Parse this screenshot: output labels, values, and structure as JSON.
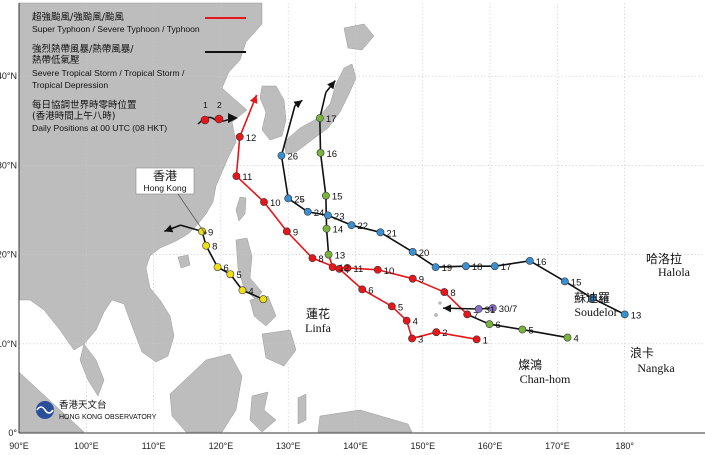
{
  "colors": {
    "land": "#bdbdbd",
    "sea": "#ffffff",
    "grid": "#c8c8c8",
    "track_typhoon": "#e8161b",
    "track_weak": "#111111",
    "dot_super": "#e8161b",
    "dot_sevts": "#78b43c",
    "dot_ts": "#f0e012",
    "dot_td": "#3a8fd0",
    "dot_other": "#8a6fc9"
  },
  "axes": {
    "x_ticks": [
      "90°E",
      "100°E",
      "110°E",
      "120°E",
      "130°E",
      "140°E",
      "150°E",
      "160°E",
      "170°E",
      "180°"
    ],
    "y_ticks": [
      "0°",
      "10°N",
      "20°N",
      "30°N",
      "40°N"
    ]
  },
  "legend": {
    "typhoon_cn": "超強颱風/強颱風/颱風",
    "typhoon_en": "Super Typhoon / Severe Typhoon / Typhoon",
    "weak_cn_1": "強烈熱帶風暴/熱帶風暴/",
    "weak_cn_2": "熱帶低氣壓",
    "weak_en_1": "Severe Tropical Storm / Tropical Storm /",
    "weak_en_2": "Tropical Depression",
    "daily_cn_1": "每日協調世界時零時位置",
    "daily_cn_2": "(香港時間上午八時)",
    "daily_en": "Daily Positions at 00 UTC (08 HKT)",
    "sample_1": "1",
    "sample_2": "2"
  },
  "hong_kong": {
    "cn": "香港",
    "en": "Hong Kong"
  },
  "observatory": {
    "cn": "香港天文台",
    "en": "HONG KONG OBSERVATORY"
  },
  "storms": [
    {
      "id": "linfa",
      "name_cn": "蓮花",
      "name_en": "Linfa",
      "points": [
        {
          "lon": 126.3,
          "lat": 15.0,
          "day": "",
          "cat": "ts"
        },
        {
          "lon": 123.2,
          "lat": 16.0,
          "day": "4",
          "cat": "ts"
        },
        {
          "lon": 121.4,
          "lat": 17.8,
          "day": "5",
          "cat": "ts"
        },
        {
          "lon": 119.5,
          "lat": 18.6,
          "day": "6",
          "cat": "ts"
        },
        {
          "lon": 117.8,
          "lat": 21.0,
          "day": "8",
          "cat": "ts"
        },
        {
          "lon": 117.2,
          "lat": 22.6,
          "day": "9",
          "cat": "ts"
        },
        {
          "lon": 114.0,
          "lat": 23.3,
          "day": "",
          "cat": ""
        },
        {
          "lon": 111.6,
          "lat": 22.6,
          "day": "",
          "cat": ""
        }
      ]
    },
    {
      "id": "chanhom",
      "name_cn": "燦鴻",
      "name_en": "Chan-hom",
      "points": [
        {
          "lon": 158.0,
          "lat": 10.5,
          "day": "1",
          "cat": "super"
        },
        {
          "lon": 152.0,
          "lat": 11.3,
          "day": "2",
          "cat": "super"
        },
        {
          "lon": 148.4,
          "lat": 10.6,
          "day": "3",
          "cat": "super"
        },
        {
          "lon": 147.6,
          "lat": 12.6,
          "day": "4",
          "cat": "super"
        },
        {
          "lon": 145.4,
          "lat": 14.2,
          "day": "5",
          "cat": "super"
        },
        {
          "lon": 141.0,
          "lat": 16.1,
          "day": "6",
          "cat": "super"
        },
        {
          "lon": 137.6,
          "lat": 18.4,
          "day": "7",
          "cat": "super"
        },
        {
          "lon": 133.6,
          "lat": 19.6,
          "day": "8",
          "cat": "super"
        },
        {
          "lon": 129.8,
          "lat": 22.6,
          "day": "9",
          "cat": "super"
        },
        {
          "lon": 126.4,
          "lat": 25.9,
          "day": "10",
          "cat": "super"
        },
        {
          "lon": 122.3,
          "lat": 28.8,
          "day": "11",
          "cat": "super"
        },
        {
          "lon": 122.8,
          "lat": 33.2,
          "day": "12",
          "cat": "super"
        },
        {
          "lon": 125.3,
          "lat": 37.9,
          "day": "",
          "cat": ""
        }
      ]
    },
    {
      "id": "nangka",
      "name_cn": "浪卡",
      "name_en": "Nangka",
      "points": [
        {
          "lon": 171.5,
          "lat": 10.7,
          "day": "4",
          "cat": "sevts"
        },
        {
          "lon": 164.8,
          "lat": 11.6,
          "day": "5",
          "cat": "sevts"
        },
        {
          "lon": 159.9,
          "lat": 12.2,
          "day": "6",
          "cat": "sevts"
        },
        {
          "lon": 156.6,
          "lat": 13.3,
          "day": "7",
          "cat": "super"
        },
        {
          "lon": 153.2,
          "lat": 15.8,
          "day": "8",
          "cat": "super"
        },
        {
          "lon": 148.5,
          "lat": 17.3,
          "day": "9",
          "cat": "super"
        },
        {
          "lon": 143.3,
          "lat": 18.3,
          "day": "10",
          "cat": "super"
        },
        {
          "lon": 138.8,
          "lat": 18.5,
          "day": "11",
          "cat": "super"
        },
        {
          "lon": 136.6,
          "lat": 18.6,
          "day": "12",
          "cat": "super"
        },
        {
          "lon": 136.0,
          "lat": 20.0,
          "day": "13",
          "cat": "sevts"
        },
        {
          "lon": 135.7,
          "lat": 22.9,
          "day": "14",
          "cat": "sevts"
        },
        {
          "lon": 135.6,
          "lat": 26.6,
          "day": "15",
          "cat": "sevts"
        },
        {
          "lon": 134.8,
          "lat": 31.4,
          "day": "16",
          "cat": "sevts"
        },
        {
          "lon": 134.7,
          "lat": 35.3,
          "day": "17",
          "cat": "sevts"
        },
        {
          "lon": 135.6,
          "lat": 38.2,
          "day": "",
          "cat": ""
        },
        {
          "lon": 137.0,
          "lat": 39.5,
          "day": "",
          "cat": ""
        }
      ]
    },
    {
      "id": "halola",
      "name_cn": "哈洛拉",
      "name_en": "Halola",
      "points": [
        {
          "lon": 180.0,
          "lat": 13.3,
          "day": "13",
          "cat": "td"
        },
        {
          "lon": 175.2,
          "lat": 15.1,
          "day": "14",
          "cat": "td"
        },
        {
          "lon": 171.1,
          "lat": 17.0,
          "day": "15",
          "cat": "td"
        },
        {
          "lon": 165.9,
          "lat": 19.3,
          "day": "16",
          "cat": "td"
        },
        {
          "lon": 160.7,
          "lat": 18.7,
          "day": "17",
          "cat": "td"
        },
        {
          "lon": 156.4,
          "lat": 18.7,
          "day": "18",
          "cat": "td"
        },
        {
          "lon": 151.9,
          "lat": 18.6,
          "day": "19",
          "cat": "td"
        },
        {
          "lon": 148.5,
          "lat": 20.3,
          "day": "20",
          "cat": "td"
        },
        {
          "lon": 143.7,
          "lat": 22.5,
          "day": "21",
          "cat": "td"
        },
        {
          "lon": 139.4,
          "lat": 23.3,
          "day": "22",
          "cat": "td"
        },
        {
          "lon": 135.9,
          "lat": 24.4,
          "day": "23",
          "cat": "td"
        },
        {
          "lon": 132.9,
          "lat": 24.8,
          "day": "24",
          "cat": "td"
        },
        {
          "lon": 130.0,
          "lat": 26.3,
          "day": "25",
          "cat": "td"
        },
        {
          "lon": 129.0,
          "lat": 31.1,
          "day": "26",
          "cat": "td"
        },
        {
          "lon": 131.0,
          "lat": 36.7,
          "day": "",
          "cat": ""
        },
        {
          "lon": 132.1,
          "lat": 37.3,
          "day": "",
          "cat": ""
        }
      ]
    },
    {
      "id": "soudelor",
      "name_cn": "蘇迪羅",
      "name_en": "Soudelor",
      "points": [
        {
          "lon": 160.4,
          "lat": 14.0,
          "day": "30/7",
          "cat": "other"
        },
        {
          "lon": 158.3,
          "lat": 13.9,
          "day": "31",
          "cat": "other"
        },
        {
          "lon": 153.0,
          "lat": 14.0,
          "day": "",
          "cat": ""
        }
      ]
    }
  ]
}
